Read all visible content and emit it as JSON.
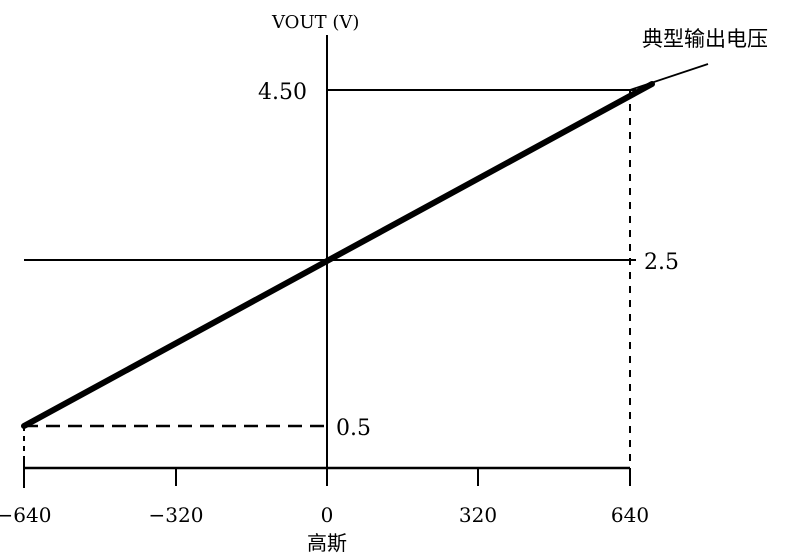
{
  "chart_data": {
    "type": "line",
    "title": "",
    "xlabel": "高斯",
    "ylabel": "VOUT (V)",
    "xlim": [
      -640,
      640
    ],
    "ylim": [
      0.5,
      4.5
    ],
    "x_ticks": [
      -640,
      -320,
      0,
      320,
      640
    ],
    "x_tick_labels": [
      "−640",
      "−320",
      "0",
      "320",
      "640"
    ],
    "y_tick_labels": [
      "4.50",
      "2.5",
      "0.5"
    ],
    "series": [
      {
        "name": "典型输出电压",
        "x": [
          -640,
          640
        ],
        "y": [
          0.5,
          4.5
        ]
      }
    ],
    "grid": false,
    "legend": "none",
    "annotations": [
      "典型输出电压"
    ],
    "colors": {
      "line": "#000000",
      "background": "#ffffff"
    }
  }
}
